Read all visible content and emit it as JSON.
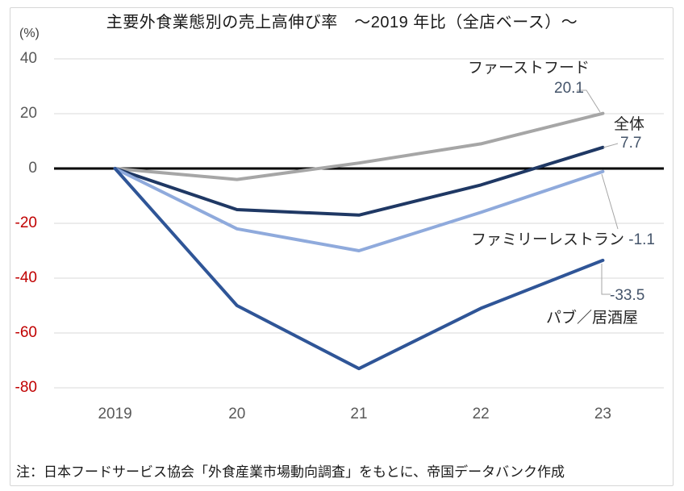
{
  "title": "主要外食業態別の売上高伸び率　～2019 年比（全店ベース）～",
  "y_axis_unit": "(%)",
  "note": "注：日本フードサービス協会「外食産業市場動向調査」をもとに、帝国データバンク作成",
  "colors": {
    "tick": "#595959",
    "negative_tick": "#c00000",
    "grid": "#d9d9d9",
    "zero_line": "#000000",
    "leader": "#a6a6a6",
    "value_label": "#44546a",
    "label_text": "#262626"
  },
  "chart_data": {
    "type": "line",
    "title": "主要外食業態別の売上高伸び率　～2019 年比（全店ベース）～",
    "ylabel": "(%)",
    "categories": [
      "2019",
      "20",
      "21",
      "22",
      "23"
    ],
    "yticks": [
      40,
      20,
      0,
      -20,
      -40,
      -60,
      -80
    ],
    "ylim": [
      -85,
      45
    ],
    "grid": true,
    "legend_position": "end-of-line callouts",
    "series": [
      {
        "name": "ファーストフード",
        "values": [
          0,
          -4,
          2,
          9,
          20.1
        ],
        "color": "#a6a6a6",
        "final_value_label": "20.1"
      },
      {
        "name": "全体",
        "values": [
          0,
          -15,
          -17,
          -6,
          7.7
        ],
        "color": "#1f3864",
        "final_value_label": "7.7"
      },
      {
        "name": "ファミリーレストラン",
        "values": [
          0,
          -22,
          -30,
          -16,
          -1.1
        ],
        "color": "#8faadc",
        "final_value_label": "-1.1"
      },
      {
        "name": "パブ／居酒屋",
        "values": [
          0,
          -50,
          -73,
          -51,
          -33.5
        ],
        "color": "#2f5597",
        "final_value_label": "-33.5"
      }
    ]
  }
}
